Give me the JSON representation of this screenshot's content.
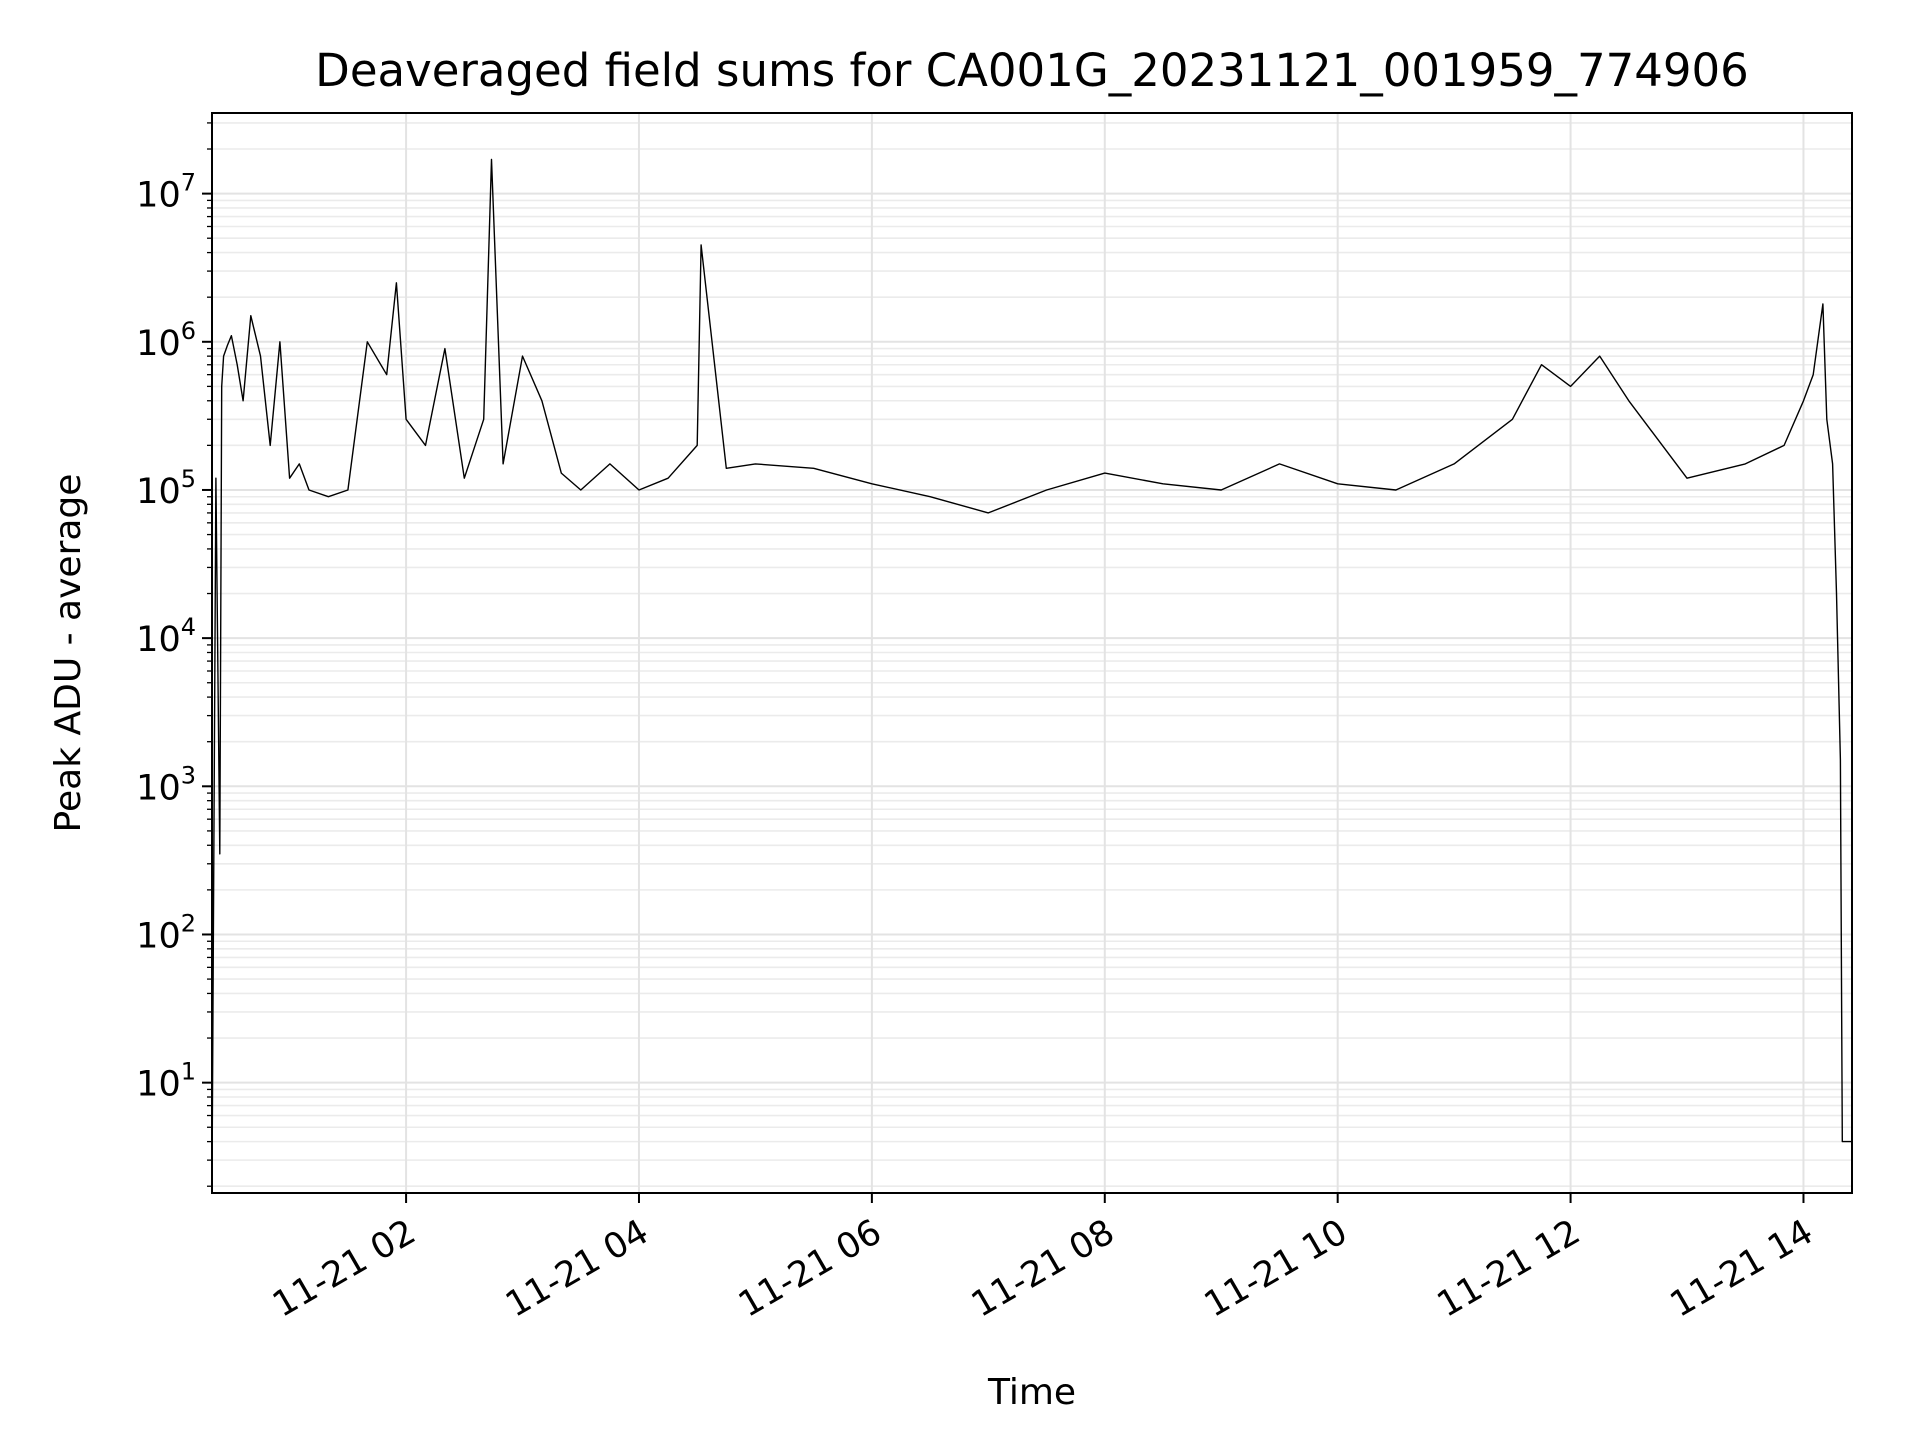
{
  "chart_data": {
    "type": "line",
    "title": "Deaveraged field sums for CA001G_20231121_001959_774906",
    "xlabel": "Time",
    "ylabel": "Peak ADU - average",
    "yscale": "log",
    "xlim": [
      "2023-11-21T00:20",
      "2023-11-21T14:25"
    ],
    "ylim": [
      1.8,
      35000000
    ],
    "grid": true,
    "line_color": "#000000",
    "x_ticks": [
      "2023-11-21T02:00",
      "2023-11-21T04:00",
      "2023-11-21T06:00",
      "2023-11-21T08:00",
      "2023-11-21T10:00",
      "2023-11-21T12:00",
      "2023-11-21T14:00"
    ],
    "x_tick_labels": [
      "11-21 02",
      "11-21 04",
      "11-21 06",
      "11-21 08",
      "11-21 10",
      "11-21 12",
      "11-21 14"
    ],
    "y_ticks": [
      {
        "value": 10,
        "base": "10",
        "exp": "1"
      },
      {
        "value": 100,
        "base": "10",
        "exp": "2"
      },
      {
        "value": 1000,
        "base": "10",
        "exp": "3"
      },
      {
        "value": 10000,
        "base": "10",
        "exp": "4"
      },
      {
        "value": 100000,
        "base": "10",
        "exp": "5"
      },
      {
        "value": 1000000,
        "base": "10",
        "exp": "6"
      },
      {
        "value": 10000000,
        "base": "10",
        "exp": "7"
      }
    ],
    "series": [
      {
        "x": [
          "2023-11-21T00:20",
          "2023-11-21T00:22",
          "2023-11-21T00:24",
          "2023-11-21T00:25",
          "2023-11-21T00:26",
          "2023-11-21T00:28",
          "2023-11-21T00:30",
          "2023-11-21T00:33",
          "2023-11-21T00:36",
          "2023-11-21T00:40",
          "2023-11-21T00:45",
          "2023-11-21T00:50",
          "2023-11-21T00:55",
          "2023-11-21T01:00",
          "2023-11-21T01:05",
          "2023-11-21T01:10",
          "2023-11-21T01:20",
          "2023-11-21T01:30",
          "2023-11-21T01:40",
          "2023-11-21T01:50",
          "2023-11-21T01:55",
          "2023-11-21T02:00",
          "2023-11-21T02:10",
          "2023-11-21T02:20",
          "2023-11-21T02:30",
          "2023-11-21T02:40",
          "2023-11-21T02:44",
          "2023-11-21T02:50",
          "2023-11-21T03:00",
          "2023-11-21T03:10",
          "2023-11-21T03:20",
          "2023-11-21T03:30",
          "2023-11-21T03:45",
          "2023-11-21T04:00",
          "2023-11-21T04:15",
          "2023-11-21T04:30",
          "2023-11-21T04:32",
          "2023-11-21T04:45",
          "2023-11-21T05:00",
          "2023-11-21T05:30",
          "2023-11-21T06:00",
          "2023-11-21T06:30",
          "2023-11-21T07:00",
          "2023-11-21T07:30",
          "2023-11-21T08:00",
          "2023-11-21T08:30",
          "2023-11-21T09:00",
          "2023-11-21T09:30",
          "2023-11-21T10:00",
          "2023-11-21T10:30",
          "2023-11-21T11:00",
          "2023-11-21T11:30",
          "2023-11-21T11:45",
          "2023-11-21T12:00",
          "2023-11-21T12:15",
          "2023-11-21T12:30",
          "2023-11-21T13:00",
          "2023-11-21T13:30",
          "2023-11-21T13:50",
          "2023-11-21T14:00",
          "2023-11-21T14:05",
          "2023-11-21T14:10",
          "2023-11-21T14:12",
          "2023-11-21T14:15",
          "2023-11-21T14:17",
          "2023-11-21T14:19",
          "2023-11-21T14:20",
          "2023-11-21T14:22",
          "2023-11-21T14:25"
        ],
        "y": [
          2,
          120000,
          350,
          500000,
          800000,
          950000,
          1100000,
          700000,
          400000,
          1500000,
          800000,
          200000,
          1000000,
          120000,
          150000,
          100000,
          90000,
          100000,
          1000000,
          600000,
          2500000,
          300000,
          200000,
          900000,
          120000,
          300000,
          17000000,
          150000,
          800000,
          400000,
          130000,
          100000,
          150000,
          100000,
          120000,
          200000,
          4500000,
          140000,
          150000,
          140000,
          110000,
          90000,
          70000,
          100000,
          130000,
          110000,
          100000,
          150000,
          110000,
          100000,
          150000,
          300000,
          700000,
          500000,
          800000,
          400000,
          120000,
          150000,
          200000,
          400000,
          600000,
          1800000,
          300000,
          150000,
          20000,
          1500,
          4,
          4,
          4
        ]
      }
    ]
  }
}
